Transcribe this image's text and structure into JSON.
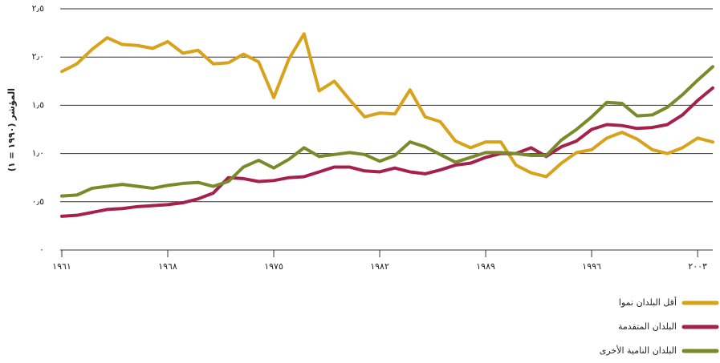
{
  "chart_data": {
    "type": "line",
    "ylabel": "المؤشر (١٩٩٠ = ١)",
    "x": [
      1961,
      1962,
      1963,
      1964,
      1965,
      1966,
      1967,
      1968,
      1969,
      1970,
      1971,
      1972,
      1973,
      1974,
      1975,
      1976,
      1977,
      1978,
      1979,
      1980,
      1981,
      1982,
      1983,
      1984,
      1985,
      1986,
      1987,
      1988,
      1989,
      1990,
      1991,
      1992,
      1993,
      1994,
      1995,
      1996,
      1997,
      1998,
      1999,
      2000,
      2001,
      2002,
      2003,
      2004
    ],
    "series": [
      {
        "name": "أقل البلدان نموا",
        "color": "#d9a21b",
        "values": [
          1.85,
          1.93,
          2.08,
          2.2,
          2.13,
          2.12,
          2.09,
          2.16,
          2.04,
          2.07,
          1.93,
          1.94,
          2.03,
          1.95,
          1.58,
          1.98,
          2.24,
          1.65,
          1.75,
          1.56,
          1.38,
          1.42,
          1.41,
          1.66,
          1.38,
          1.33,
          1.13,
          1.06,
          1.12,
          1.12,
          0.88,
          0.8,
          0.76,
          0.9,
          1.01,
          1.04,
          1.16,
          1.22,
          1.15,
          1.04,
          1.0,
          1.06,
          1.16,
          1.12
        ]
      },
      {
        "name": "البلدان المتقدمة",
        "color": "#a6204e",
        "values": [
          0.35,
          0.36,
          0.39,
          0.42,
          0.43,
          0.45,
          0.46,
          0.47,
          0.49,
          0.53,
          0.59,
          0.75,
          0.74,
          0.71,
          0.72,
          0.75,
          0.76,
          0.81,
          0.86,
          0.86,
          0.82,
          0.81,
          0.85,
          0.81,
          0.79,
          0.83,
          0.88,
          0.9,
          0.96,
          1.0,
          1.0,
          1.06,
          0.97,
          1.07,
          1.13,
          1.25,
          1.3,
          1.29,
          1.26,
          1.27,
          1.3,
          1.4,
          1.55,
          1.68
        ]
      },
      {
        "name": "البلدان النامية الأخرى",
        "color": "#7a8a2a",
        "values": [
          0.56,
          0.57,
          0.64,
          0.66,
          0.68,
          0.66,
          0.64,
          0.67,
          0.69,
          0.7,
          0.66,
          0.71,
          0.86,
          0.93,
          0.85,
          0.94,
          1.06,
          0.97,
          0.99,
          1.01,
          0.99,
          0.92,
          0.98,
          1.12,
          1.07,
          0.99,
          0.91,
          0.96,
          1.01,
          1.01,
          1.0,
          0.98,
          0.98,
          1.14,
          1.25,
          1.38,
          1.53,
          1.52,
          1.39,
          1.4,
          1.48,
          1.61,
          1.76,
          1.9
        ]
      }
    ],
    "xlim": [
      1961,
      2004
    ],
    "xticks": [
      {
        "value": 1961,
        "label": "١٩٦١"
      },
      {
        "value": 1968,
        "label": "١٩٦٨"
      },
      {
        "value": 1975,
        "label": "١٩٧٥"
      },
      {
        "value": 1982,
        "label": "١٩٨٢"
      },
      {
        "value": 1989,
        "label": "١٩٨٩"
      },
      {
        "value": 1996,
        "label": "١٩٩٦"
      },
      {
        "value": 2003,
        "label": "٢٠٠٣"
      }
    ],
    "ylim": [
      0,
      2.5
    ],
    "yticks": [
      {
        "value": 0,
        "label": "٠"
      },
      {
        "value": 0.5,
        "label": "٠٫٥"
      },
      {
        "value": 1,
        "label": "١٫٠"
      },
      {
        "value": 1.5,
        "label": "١٫٥"
      },
      {
        "value": 2,
        "label": "٢٫٠"
      },
      {
        "value": 2.5,
        "label": "٢٫٥"
      }
    ],
    "grid": true,
    "legend": "bottom-right"
  }
}
